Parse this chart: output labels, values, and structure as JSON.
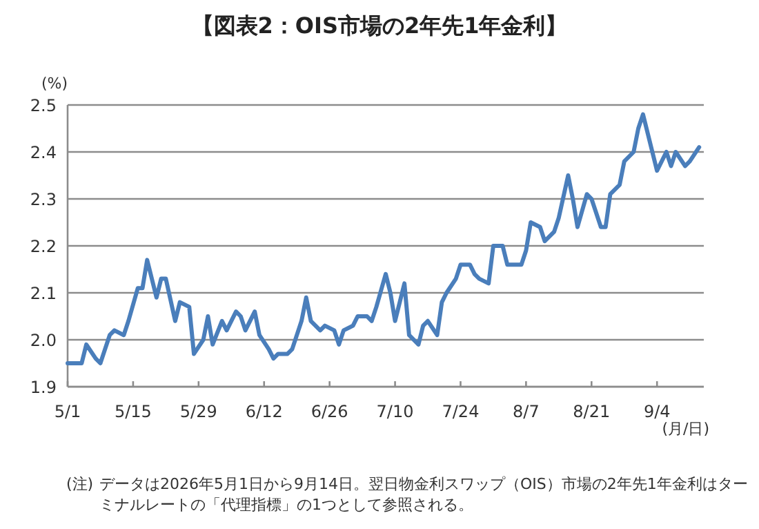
{
  "chart_data": {
    "type": "line",
    "title": "【図表2：OIS市場の2年先1年金利】",
    "ylabel": "(%)",
    "xlabel": "(月/日)",
    "x": [
      "2026-05-01",
      "2026-05-04",
      "2026-05-05",
      "2026-05-07",
      "2026-05-08",
      "2026-05-10",
      "2026-05-11",
      "2026-05-13",
      "2026-05-14",
      "2026-05-16",
      "2026-05-17",
      "2026-05-18",
      "2026-05-20",
      "2026-05-21",
      "2026-05-22",
      "2026-05-24",
      "2026-05-25",
      "2026-05-27",
      "2026-05-28",
      "2026-05-30",
      "2026-05-31",
      "2026-06-01",
      "2026-06-03",
      "2026-06-04",
      "2026-06-06",
      "2026-06-07",
      "2026-06-08",
      "2026-06-10",
      "2026-06-11",
      "2026-06-13",
      "2026-06-14",
      "2026-06-15",
      "2026-06-17",
      "2026-06-18",
      "2026-06-20",
      "2026-06-21",
      "2026-06-22",
      "2026-06-24",
      "2026-06-25",
      "2026-06-27",
      "2026-06-28",
      "2026-06-29",
      "2026-07-01",
      "2026-07-02",
      "2026-07-04",
      "2026-07-05",
      "2026-07-06",
      "2026-07-08",
      "2026-07-09",
      "2026-07-10",
      "2026-07-12",
      "2026-07-13",
      "2026-07-15",
      "2026-07-16",
      "2026-07-17",
      "2026-07-19",
      "2026-07-20",
      "2026-07-21",
      "2026-07-23",
      "2026-07-24",
      "2026-07-26",
      "2026-07-27",
      "2026-07-28",
      "2026-07-30",
      "2026-07-31",
      "2026-08-02",
      "2026-08-03",
      "2026-08-04",
      "2026-08-06",
      "2026-08-07",
      "2026-08-08",
      "2026-08-10",
      "2026-08-11",
      "2026-08-13",
      "2026-08-14",
      "2026-08-16",
      "2026-08-17",
      "2026-08-18",
      "2026-08-20",
      "2026-08-21",
      "2026-08-23",
      "2026-08-24",
      "2026-08-25",
      "2026-08-27",
      "2026-08-28",
      "2026-08-30",
      "2026-08-31",
      "2026-09-01",
      "2026-09-03",
      "2026-09-04",
      "2026-09-06",
      "2026-09-07",
      "2026-09-08",
      "2026-09-10",
      "2026-09-11",
      "2026-09-13"
    ],
    "series": [
      {
        "color": "#4a7ebb",
        "values": [
          1.95,
          1.95,
          1.99,
          1.96,
          1.95,
          2.01,
          2.02,
          2.01,
          2.04,
          2.11,
          2.11,
          2.17,
          2.09,
          2.13,
          2.13,
          2.04,
          2.08,
          2.07,
          1.97,
          2.0,
          2.05,
          1.99,
          2.04,
          2.02,
          2.06,
          2.05,
          2.02,
          2.06,
          2.01,
          1.98,
          1.96,
          1.97,
          1.97,
          1.98,
          2.04,
          2.09,
          2.04,
          2.02,
          2.03,
          2.02,
          1.99,
          2.02,
          2.03,
          2.05,
          2.05,
          2.04,
          2.07,
          2.14,
          2.1,
          2.04,
          2.12,
          2.01,
          1.99,
          2.03,
          2.04,
          2.01,
          2.08,
          2.1,
          2.13,
          2.16,
          2.16,
          2.14,
          2.13,
          2.12,
          2.2,
          2.2,
          2.16,
          2.16,
          2.16,
          2.19,
          2.25,
          2.24,
          2.21,
          2.23,
          2.26,
          2.35,
          2.3,
          2.24,
          2.31,
          2.3,
          2.24,
          2.24,
          2.31,
          2.33,
          2.38,
          2.4,
          2.45,
          2.48,
          2.4,
          2.36,
          2.4,
          2.37,
          2.4,
          2.37,
          2.38,
          2.41
        ]
      }
    ],
    "xlim": [
      "2026-05-01",
      "2026-09-14"
    ],
    "xticks": [
      {
        "value": "2026-05-01",
        "label": "5/1"
      },
      {
        "value": "2026-05-15",
        "label": "5/15"
      },
      {
        "value": "2026-05-29",
        "label": "5/29"
      },
      {
        "value": "2026-06-12",
        "label": "6/12"
      },
      {
        "value": "2026-06-26",
        "label": "6/26"
      },
      {
        "value": "2026-07-10",
        "label": "7/10"
      },
      {
        "value": "2026-07-24",
        "label": "7/24"
      },
      {
        "value": "2026-08-07",
        "label": "8/7"
      },
      {
        "value": "2026-08-21",
        "label": "8/21"
      },
      {
        "value": "2026-09-04",
        "label": "9/4"
      }
    ],
    "ylim": [
      1.9,
      2.5
    ],
    "yticks": [
      {
        "value": 1.9,
        "label": "1.9"
      },
      {
        "value": 2.0,
        "label": "2.0"
      },
      {
        "value": 2.1,
        "label": "2.1"
      },
      {
        "value": 2.2,
        "label": "2.2"
      },
      {
        "value": 2.3,
        "label": "2.3"
      },
      {
        "value": 2.4,
        "label": "2.4"
      },
      {
        "value": 2.5,
        "label": "2.5"
      }
    ],
    "grid": "y",
    "marker": "none",
    "line_style": "solid",
    "annotations": [
      "(注)",
      "データは2026年5月1日から9月14日。翌日物金利スワップ（OIS）市場の2年先1年金利はターミナルレートの「代理指標」の1つとして参照される。"
    ]
  }
}
